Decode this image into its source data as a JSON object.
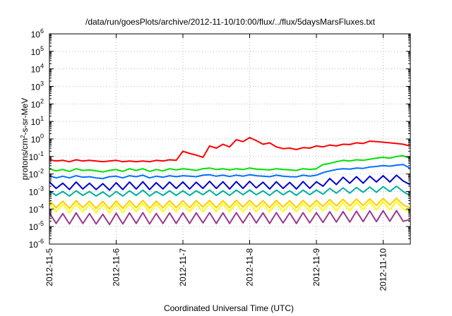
{
  "chart_data": {
    "type": "line",
    "title": "/data/run/goesPlots/archive/2012-11-10/10:00/flux/../flux/5daysMarsFluxes.txt",
    "xlabel": "Coordinated Universal Time (UTC)",
    "ylabel": {
      "pre": "protons/cm",
      "sup": "2",
      "post": "-s-sr-MeV"
    },
    "yscale": "log",
    "ylim": [
      1e-06,
      1000000.0
    ],
    "xlim": [
      "2012-11-05",
      "2012-11-10 10:00"
    ],
    "grid": true,
    "legend": "none",
    "x_ticks": [
      "2012-11-5",
      "2012-11-6",
      "2012-11-7",
      "2012-11-8",
      "2012-11-9",
      "2012-11-10"
    ],
    "y_ticks": [
      {
        "exp": "-6",
        "value": 1e-06
      },
      {
        "exp": "-5",
        "value": 1e-05
      },
      {
        "exp": "-4",
        "value": 0.0001
      },
      {
        "exp": "-3",
        "value": 0.001
      },
      {
        "exp": "-2",
        "value": 0.01
      },
      {
        "exp": "-1",
        "value": 0.1
      },
      {
        "exp": "0",
        "value": 1
      },
      {
        "exp": "1",
        "value": 10
      },
      {
        "exp": "2",
        "value": 100
      },
      {
        "exp": "3",
        "value": 1000
      },
      {
        "exp": "4",
        "value": 10000
      },
      {
        "exp": "5",
        "value": 100000
      },
      {
        "exp": "6",
        "value": 1000000
      }
    ],
    "x_days": [
      0,
      0.1,
      0.2,
      0.3,
      0.4,
      0.5,
      0.6,
      0.7,
      0.8,
      0.9,
      1.0,
      1.1,
      1.2,
      1.3,
      1.4,
      1.5,
      1.6,
      1.7,
      1.8,
      1.9,
      2.0,
      2.1,
      2.2,
      2.3,
      2.4,
      2.5,
      2.6,
      2.7,
      2.8,
      2.9,
      3.0,
      3.1,
      3.2,
      3.3,
      3.4,
      3.5,
      3.6,
      3.7,
      3.8,
      3.9,
      4.0,
      4.1,
      4.2,
      4.3,
      4.4,
      4.5,
      4.6,
      4.7,
      4.8,
      4.9,
      5.0,
      5.1,
      5.2,
      5.3,
      5.4
    ],
    "series": [
      {
        "color": "#ff0000",
        "values": [
          0.065,
          0.055,
          0.06,
          0.05,
          0.065,
          0.055,
          0.06,
          0.055,
          0.05,
          0.055,
          0.06,
          0.05,
          0.055,
          0.05,
          0.055,
          0.05,
          0.06,
          0.055,
          0.065,
          0.06,
          0.2,
          0.15,
          0.12,
          0.09,
          0.4,
          0.3,
          0.5,
          0.35,
          0.9,
          0.7,
          1.2,
          0.8,
          0.5,
          0.6,
          0.35,
          0.28,
          0.3,
          0.25,
          0.32,
          0.3,
          0.4,
          0.35,
          0.45,
          0.4,
          0.5,
          0.48,
          0.6,
          0.55,
          0.75,
          0.7,
          0.65,
          0.6,
          0.55,
          0.5,
          0.4
        ]
      },
      {
        "color": "#00e000",
        "values": [
          0.02,
          0.015,
          0.018,
          0.014,
          0.02,
          0.016,
          0.017,
          0.015,
          0.013,
          0.016,
          0.018,
          0.014,
          0.02,
          0.016,
          0.02,
          0.014,
          0.018,
          0.015,
          0.02,
          0.017,
          0.02,
          0.018,
          0.016,
          0.02,
          0.022,
          0.018,
          0.02,
          0.017,
          0.02,
          0.018,
          0.022,
          0.019,
          0.018,
          0.017,
          0.02,
          0.018,
          0.017,
          0.016,
          0.02,
          0.018,
          0.02,
          0.035,
          0.04,
          0.05,
          0.06,
          0.055,
          0.065,
          0.06,
          0.07,
          0.08,
          0.09,
          0.08,
          0.1,
          0.11,
          0.08
        ]
      },
      {
        "color": "#0070ff",
        "values": [
          0.008,
          0.006,
          0.0075,
          0.006,
          0.008,
          0.0065,
          0.007,
          0.006,
          0.0055,
          0.007,
          0.0075,
          0.006,
          0.008,
          0.007,
          0.0085,
          0.006,
          0.0075,
          0.0065,
          0.008,
          0.007,
          0.008,
          0.0075,
          0.007,
          0.0085,
          0.009,
          0.0075,
          0.0085,
          0.0072,
          0.0085,
          0.0075,
          0.009,
          0.008,
          0.0075,
          0.007,
          0.0085,
          0.0075,
          0.007,
          0.0068,
          0.0085,
          0.0075,
          0.0085,
          0.012,
          0.015,
          0.018,
          0.02,
          0.019,
          0.022,
          0.021,
          0.025,
          0.027,
          0.03,
          0.028,
          0.032,
          0.035,
          0.022
        ]
      },
      {
        "color": "#0000cc",
        "values": [
          0.0035,
          0.0015,
          0.003,
          0.0013,
          0.0035,
          0.0014,
          0.003,
          0.0013,
          0.0028,
          0.0012,
          0.0032,
          0.0013,
          0.0035,
          0.0014,
          0.0036,
          0.0013,
          0.0032,
          0.0014,
          0.0035,
          0.0015,
          0.0035,
          0.0014,
          0.0034,
          0.0015,
          0.0038,
          0.0015,
          0.0036,
          0.0014,
          0.0037,
          0.0015,
          0.0038,
          0.0016,
          0.0034,
          0.0014,
          0.0036,
          0.0015,
          0.0033,
          0.0014,
          0.0037,
          0.0015,
          0.0036,
          0.002,
          0.0055,
          0.0025,
          0.0065,
          0.003,
          0.007,
          0.003,
          0.0075,
          0.0035,
          0.008,
          0.0035,
          0.0085,
          0.004,
          0.0025
        ]
      },
      {
        "color": "#00b0a0",
        "values": [
          0.0011,
          0.0006,
          0.001,
          0.00055,
          0.0011,
          0.0006,
          0.001,
          0.00055,
          0.00095,
          0.0005,
          0.001,
          0.00055,
          0.0011,
          0.0006,
          0.0012,
          0.00055,
          0.001,
          0.0006,
          0.0011,
          0.0006,
          0.0011,
          0.0006,
          0.0011,
          0.00065,
          0.0012,
          0.0006,
          0.0011,
          0.0006,
          0.0012,
          0.00065,
          0.0012,
          0.00065,
          0.0011,
          0.0006,
          0.0012,
          0.00065,
          0.0011,
          0.0006,
          0.0012,
          0.00065,
          0.0012,
          0.0007,
          0.0015,
          0.0008,
          0.0016,
          0.0008,
          0.0017,
          0.0009,
          0.0018,
          0.0009,
          0.0019,
          0.001,
          0.002,
          0.001,
          0.0006
        ]
      },
      {
        "color": "#ffcc00",
        "values": [
          0.0003,
          0.00012,
          0.00028,
          0.00011,
          0.0003,
          0.00012,
          0.00028,
          0.00011,
          0.00027,
          0.0001,
          0.00029,
          0.00011,
          0.0003,
          0.00012,
          0.00031,
          0.00011,
          0.00028,
          0.00012,
          0.0003,
          0.00012,
          0.0003,
          0.00012,
          0.0003,
          0.00013,
          0.00031,
          0.00012,
          0.0003,
          0.00012,
          0.00031,
          0.00013,
          0.00031,
          0.00013,
          0.0003,
          0.00012,
          0.00031,
          0.00013,
          0.0003,
          0.00012,
          0.00031,
          0.00013,
          0.00031,
          0.00014,
          0.00035,
          0.00015,
          0.00036,
          0.00015,
          0.00037,
          0.00016,
          0.00038,
          0.00016,
          0.0004,
          0.00017,
          0.00042,
          0.00017,
          0.00012
        ]
      },
      {
        "color": "#ffff00",
        "values": [
          0.0002,
          7e-05,
          0.00019,
          6e-05,
          0.0002,
          7e-05,
          0.00019,
          6e-05,
          0.00018,
          6e-05,
          0.0002,
          6e-05,
          0.0002,
          7e-05,
          0.00021,
          6e-05,
          0.00019,
          7e-05,
          0.0002,
          7e-05,
          0.0002,
          7e-05,
          0.0002,
          7e-05,
          0.00021,
          7e-05,
          0.0002,
          7e-05,
          0.00021,
          7e-05,
          0.00021,
          7e-05,
          0.0002,
          7e-05,
          0.00021,
          7e-05,
          0.0002,
          7e-05,
          0.00021,
          7e-05,
          0.00021,
          8e-05,
          0.00023,
          8e-05,
          0.00024,
          8e-05,
          0.00025,
          9e-05,
          0.00026,
          9e-05,
          0.00027,
          9e-05,
          0.00028,
          0.0001,
          7e-05
        ]
      },
      {
        "color": "#9a3a8a",
        "values": [
          6e-05,
          1.5e-05,
          5.5e-05,
          1.4e-05,
          6e-05,
          1.5e-05,
          5.5e-05,
          1.4e-05,
          5e-05,
          1.3e-05,
          5.8e-05,
          1.4e-05,
          6e-05,
          1.5e-05,
          6.2e-05,
          1.4e-05,
          5.6e-05,
          1.5e-05,
          6e-05,
          1.5e-05,
          6e-05,
          1.5e-05,
          6e-05,
          1.6e-05,
          6.2e-05,
          1.5e-05,
          6e-05,
          1.5e-05,
          6.2e-05,
          1.6e-05,
          6.2e-05,
          1.6e-05,
          6e-05,
          1.5e-05,
          6.2e-05,
          1.6e-05,
          6e-05,
          1.5e-05,
          6.2e-05,
          1.6e-05,
          6.2e-05,
          1.7e-05,
          7e-05,
          1.8e-05,
          7.2e-05,
          1.8e-05,
          7.5e-05,
          1.9e-05,
          7.8e-05,
          1.9e-05,
          8e-05,
          2e-05,
          8.2e-05,
          2e-05,
          2.5e-05
        ]
      }
    ]
  }
}
